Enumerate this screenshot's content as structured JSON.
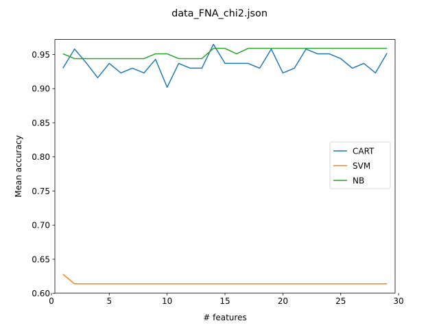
{
  "chart_data": {
    "type": "line",
    "title": "data_FNA_chi2.json",
    "xlabel": "# features",
    "ylabel": "Mean accuracy",
    "xlim": [
      0.3,
      29.7
    ],
    "ylim": [
      0.6005,
      0.972
    ],
    "xticks": [
      0,
      5,
      10,
      15,
      20,
      25,
      30
    ],
    "xtick_labels": [
      "0",
      "5",
      "10",
      "15",
      "20",
      "25",
      "30"
    ],
    "yticks": [
      0.6,
      0.65,
      0.7,
      0.75,
      0.8,
      0.85,
      0.9,
      0.95
    ],
    "ytick_labels": [
      "0.60",
      "0.65",
      "0.70",
      "0.75",
      "0.80",
      "0.85",
      "0.90",
      "0.95"
    ],
    "grid": false,
    "legend": "center-right",
    "x": [
      1,
      2,
      3,
      4,
      5,
      6,
      7,
      8,
      9,
      10,
      11,
      12,
      13,
      14,
      15,
      16,
      17,
      18,
      19,
      20,
      21,
      22,
      23,
      24,
      25,
      26,
      27,
      28,
      29
    ],
    "series": [
      {
        "name": "CART",
        "color": "#1f77b4",
        "values": [
          0.93,
          0.958,
          0.938,
          0.916,
          0.937,
          0.923,
          0.93,
          0.923,
          0.943,
          0.902,
          0.937,
          0.93,
          0.93,
          0.965,
          0.937,
          0.937,
          0.937,
          0.93,
          0.958,
          0.923,
          0.93,
          0.958,
          0.951,
          0.951,
          0.944,
          0.93,
          0.937,
          0.923,
          0.952
        ]
      },
      {
        "name": "SVM",
        "color": "#ff7f0e",
        "values": [
          0.628,
          0.614,
          0.614,
          0.614,
          0.614,
          0.614,
          0.614,
          0.614,
          0.614,
          0.614,
          0.614,
          0.614,
          0.614,
          0.614,
          0.614,
          0.614,
          0.614,
          0.614,
          0.614,
          0.614,
          0.614,
          0.614,
          0.614,
          0.614,
          0.614,
          0.614,
          0.614,
          0.614,
          0.614
        ]
      },
      {
        "name": "NB",
        "color": "#2ca02c",
        "values": [
          0.951,
          0.944,
          0.944,
          0.944,
          0.944,
          0.944,
          0.944,
          0.944,
          0.951,
          0.951,
          0.944,
          0.944,
          0.944,
          0.959,
          0.959,
          0.951,
          0.959,
          0.959,
          0.959,
          0.959,
          0.959,
          0.959,
          0.959,
          0.959,
          0.959,
          0.959,
          0.959,
          0.959,
          0.959
        ]
      }
    ]
  }
}
